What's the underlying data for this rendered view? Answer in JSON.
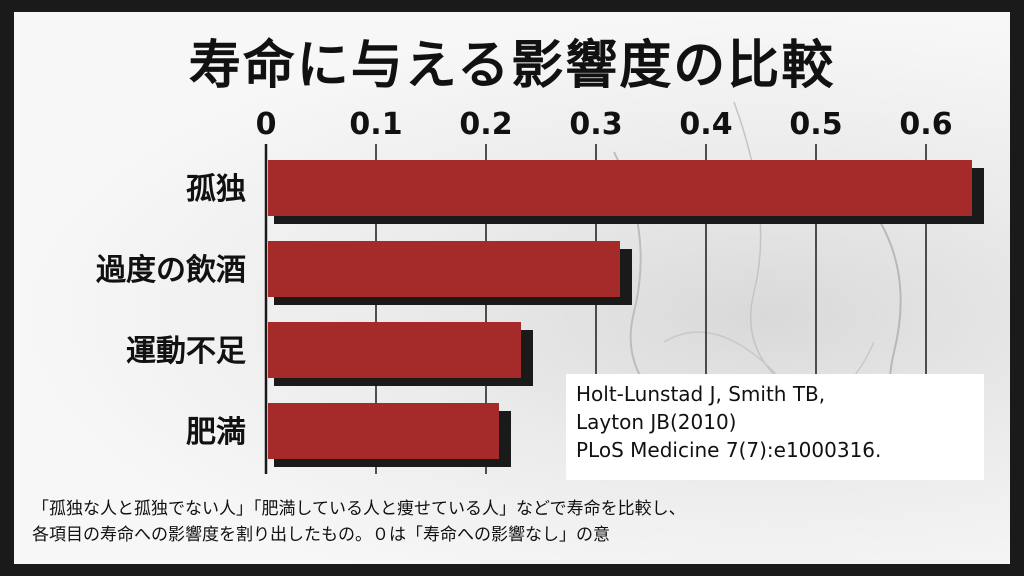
{
  "chart_data": {
    "type": "bar",
    "orientation": "horizontal",
    "title": "寿命に与える影響度の比較",
    "categories": [
      "孤独",
      "過度の飲酒",
      "運動不足",
      "肥満"
    ],
    "values": [
      0.64,
      0.32,
      0.23,
      0.21
    ],
    "xticks": [
      "0",
      "0.1",
      "0.2",
      "0.3",
      "0.4",
      "0.5",
      "0.6"
    ],
    "xlim": [
      0,
      0.65
    ],
    "axis_position": "top",
    "grid": true,
    "bar_color": "#a52a2a",
    "shadow_color": "#1a1a1a"
  },
  "citation": {
    "lines": [
      "Holt-Lunstad J, Smith TB,",
      "Layton JB(2010)",
      "PLoS Medicine 7(7):e1000316."
    ]
  },
  "footnote": {
    "lines": [
      "「孤独な人と孤独でない人」「肥満している人と痩せている人」などで寿命を比較し、",
      "各項目の寿命への影響度を割り出したもの。０は「寿命への影響なし」の意"
    ]
  }
}
